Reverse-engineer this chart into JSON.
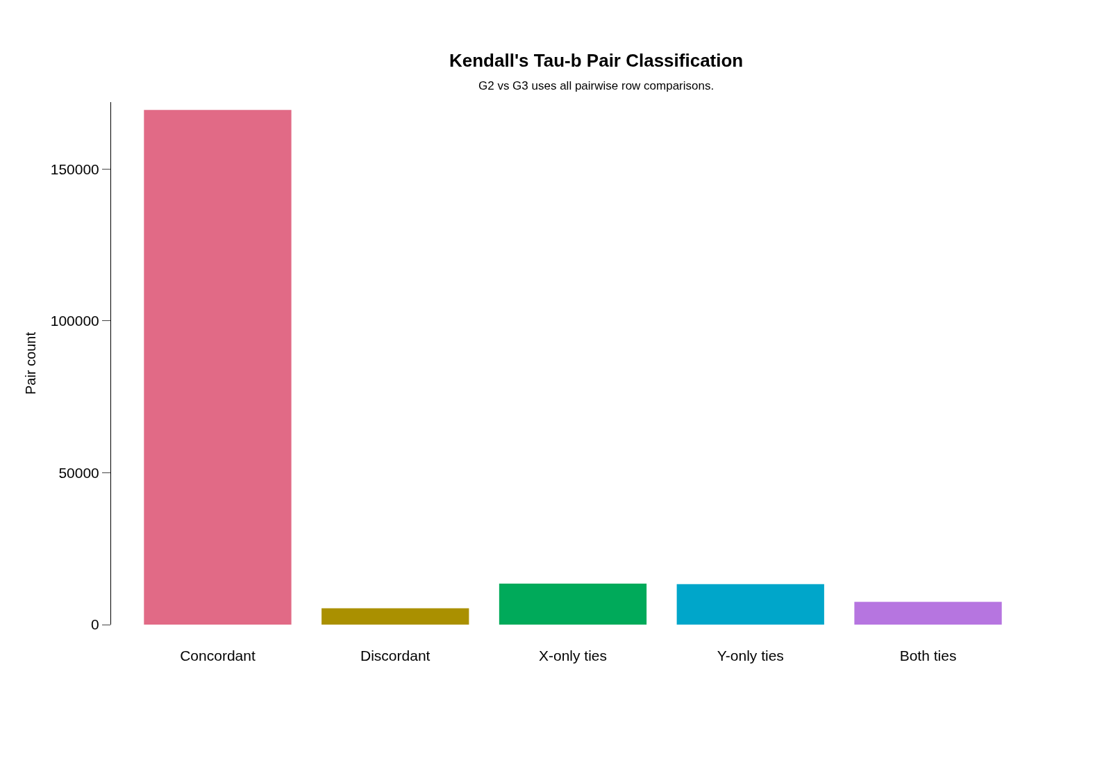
{
  "chart_data": {
    "type": "bar",
    "title": "Kendall's Tau-b Pair Classification",
    "subtitle": "G2 vs G3 uses all pairwise row comparisons.",
    "ylabel": "Pair count",
    "categories": [
      "Concordant",
      "Discordant",
      "X-only ties",
      "Y-only ties",
      "Both ties"
    ],
    "values": [
      169400,
      5400,
      13500,
      13300,
      7500
    ],
    "colors": [
      "#e16a86",
      "#aa9000",
      "#00aa5a",
      "#00a6ca",
      "#b675e0"
    ],
    "ylim": [
      0,
      172000
    ],
    "yticks": [
      0,
      50000,
      100000,
      150000
    ]
  }
}
